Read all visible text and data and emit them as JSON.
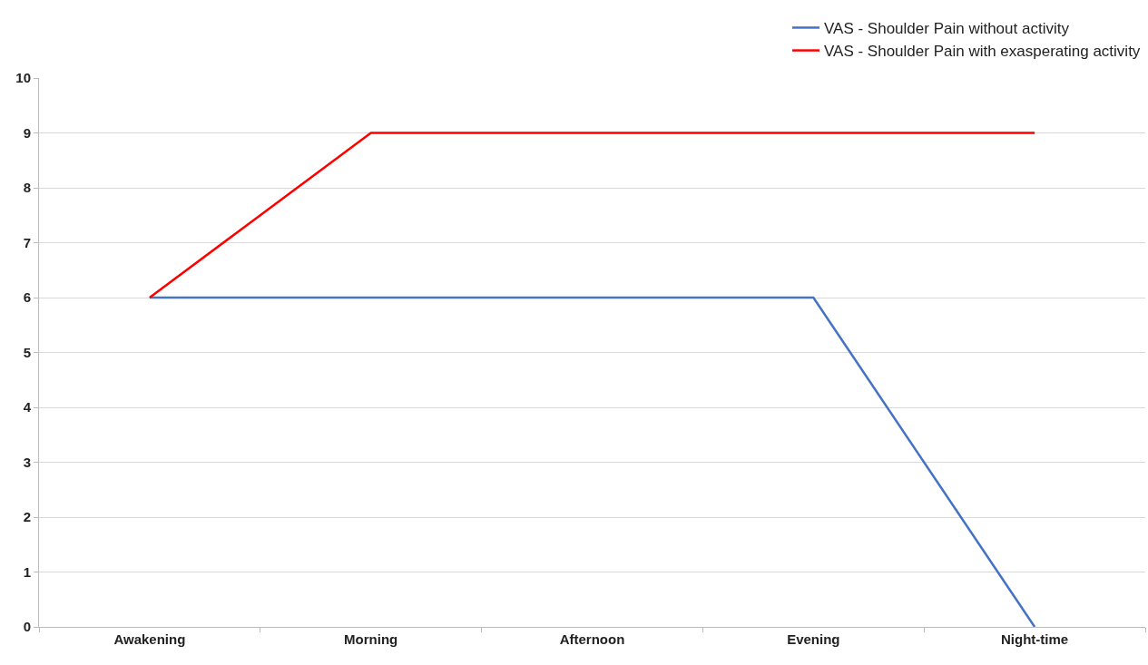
{
  "chart_data": {
    "type": "line",
    "categories": [
      "Awakening",
      "Morning",
      "Afternoon",
      "Evening",
      "Night-time"
    ],
    "series": [
      {
        "name": "VAS - Shoulder Pain without activity",
        "color": "#4472c4",
        "values": [
          6,
          6,
          6,
          6,
          0
        ]
      },
      {
        "name": "VAS - Shoulder Pain with exasperating activity",
        "color": "#ff0000",
        "values": [
          6,
          9,
          9,
          9,
          9
        ]
      }
    ],
    "ylim": [
      0,
      10
    ],
    "yticks": [
      0,
      1,
      2,
      3,
      4,
      5,
      6,
      7,
      8,
      9,
      10
    ],
    "grid": "y",
    "legend": "top right",
    "marker": "none",
    "line_style": "solid"
  }
}
